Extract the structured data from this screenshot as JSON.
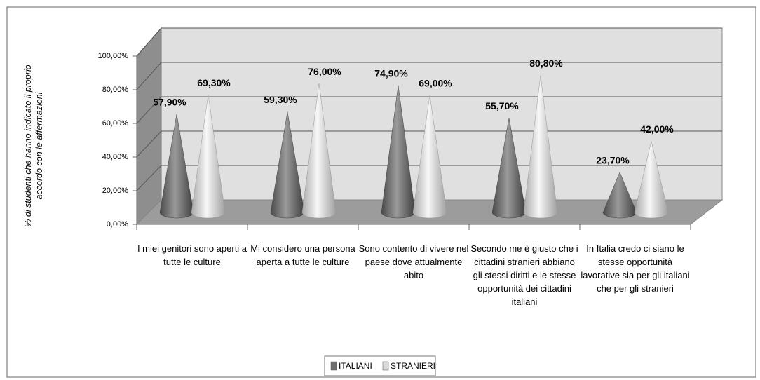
{
  "chart_data": {
    "type": "cone",
    "y_label": "% di studenti che hanno indicato il proprio accordo con le affermazioni",
    "categories": [
      "I miei genitori sono aperti a tutte le culture",
      "Mi considero una persona aperta a tutte le culture",
      "Sono contento di vivere nel paese dove attualmente abito",
      "Secondo me è giusto che i cittadini stranieri abbiano gli stessi diritti e le stesse opportunità dei cittadini italiani",
      "In Italia credo ci siano le stesse opportunità lavorative sia per gli italiani che per gli stranieri"
    ],
    "series": [
      {
        "name": "ITALIANI",
        "color": "#6e6e6e",
        "values": [
          57.9,
          59.3,
          74.9,
          55.7,
          23.7
        ],
        "value_labels": [
          "57,90%",
          "59,30%",
          "74,90%",
          "55,70%",
          "23,70%"
        ]
      },
      {
        "name": "STRANIERI",
        "color": "#d9d9d9",
        "values": [
          69.3,
          76.0,
          69.0,
          80.8,
          42.0
        ],
        "value_labels": [
          "69,30%",
          "76,00%",
          "69,00%",
          "80,80%",
          "42,00%"
        ]
      }
    ],
    "ylim": [
      0,
      100
    ],
    "yticks": [
      {
        "value": 0,
        "label": "0,00%"
      },
      {
        "value": 20,
        "label": "20,00%"
      },
      {
        "value": 40,
        "label": "40,00%"
      },
      {
        "value": 60,
        "label": "60,00%"
      },
      {
        "value": 80,
        "label": "80,00%"
      },
      {
        "value": 100,
        "label": "100,00%"
      }
    ],
    "grid": true,
    "legend": "bottom"
  }
}
